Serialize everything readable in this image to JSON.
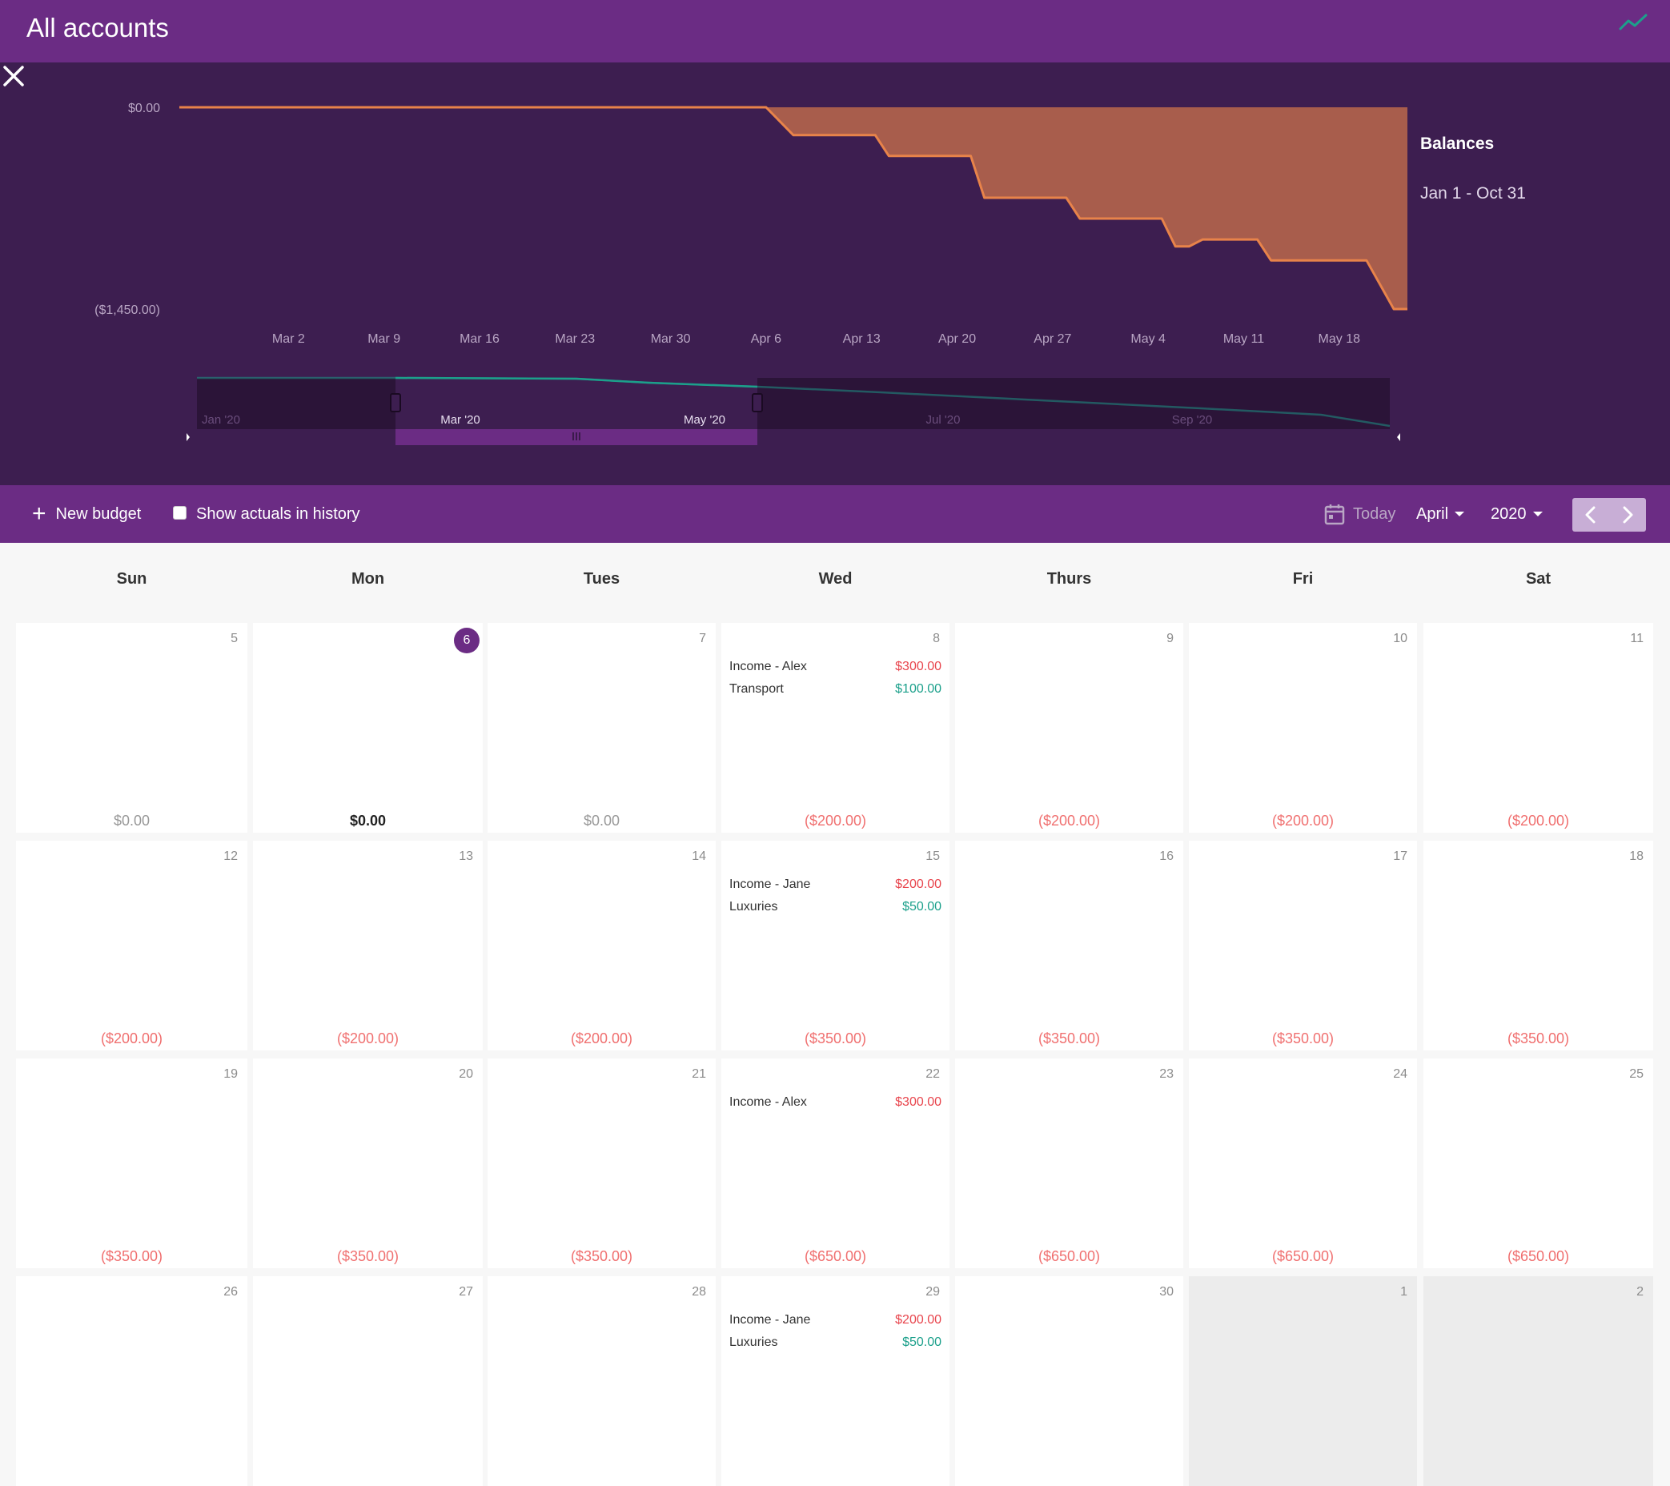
{
  "header": {
    "title": "All accounts",
    "trend_icon": "trend-line-icon"
  },
  "chart_panel": {
    "legend_title": "Balances",
    "legend_range": "Jan 1 - Oct 31",
    "close_icon": "close-icon"
  },
  "chart_data": {
    "type": "area",
    "y_ticks": [
      "$0.00",
      "($1,450.00)"
    ],
    "x_ticks": [
      "Mar 2",
      "Mar 9",
      "Mar 16",
      "Mar 23",
      "Mar 30",
      "Apr 6",
      "Apr 13",
      "Apr 20",
      "Apr 27",
      "May 4",
      "May 11",
      "May 18"
    ],
    "x_start": "2020-02-23",
    "x_end": "2020-05-23",
    "ylim": [
      -1450,
      0
    ],
    "series": [
      {
        "color": "#e8834a",
        "fill": "#a85d4c",
        "points": [
          [
            "2020-02-23",
            0
          ],
          [
            "2020-04-06",
            0
          ],
          [
            "2020-04-08",
            -200
          ],
          [
            "2020-04-14",
            -200
          ],
          [
            "2020-04-15",
            -350
          ],
          [
            "2020-04-21",
            -350
          ],
          [
            "2020-04-22",
            -650
          ],
          [
            "2020-04-28",
            -650
          ],
          [
            "2020-04-29",
            -800
          ],
          [
            "2020-05-05",
            -800
          ],
          [
            "2020-05-06",
            -1000
          ],
          [
            "2020-05-07",
            -1000
          ],
          [
            "2020-05-08",
            -950
          ],
          [
            "2020-05-12",
            -950
          ],
          [
            "2020-05-13",
            -1100
          ],
          [
            "2020-05-20",
            -1100
          ],
          [
            "2020-05-22",
            -1450
          ],
          [
            "2020-05-23",
            -1450
          ]
        ]
      }
    ],
    "navigator": {
      "labels": [
        "Jan '20",
        "Mar '20",
        "May '20",
        "Jul '20",
        "Sep '20"
      ],
      "line_color": "#1ca08b"
    }
  },
  "toolbar": {
    "new_budget": "New budget",
    "show_actuals": "Show actuals in history",
    "today": "Today",
    "month": "April",
    "year": "2020"
  },
  "weekdays": [
    "Sun",
    "Mon",
    "Tues",
    "Wed",
    "Thurs",
    "Fri",
    "Sat"
  ],
  "weeks": [
    [
      {
        "day": "5",
        "balance": "$0.00",
        "kind": "zero"
      },
      {
        "day": "6",
        "balance": "$0.00",
        "kind": "current",
        "today": true
      },
      {
        "day": "7",
        "balance": "$0.00",
        "kind": "zero"
      },
      {
        "day": "8",
        "balance": "($200.00)",
        "kind": "neg",
        "entries": [
          {
            "label": "Income - Alex",
            "amount": "$300.00",
            "sign": "neg"
          },
          {
            "label": "Transport",
            "amount": "$100.00",
            "sign": "pos"
          }
        ]
      },
      {
        "day": "9",
        "balance": "($200.00)",
        "kind": "neg"
      },
      {
        "day": "10",
        "balance": "($200.00)",
        "kind": "neg"
      },
      {
        "day": "11",
        "balance": "($200.00)",
        "kind": "neg"
      }
    ],
    [
      {
        "day": "12",
        "balance": "($200.00)",
        "kind": "neg"
      },
      {
        "day": "13",
        "balance": "($200.00)",
        "kind": "neg"
      },
      {
        "day": "14",
        "balance": "($200.00)",
        "kind": "neg"
      },
      {
        "day": "15",
        "balance": "($350.00)",
        "kind": "neg",
        "entries": [
          {
            "label": "Income - Jane",
            "amount": "$200.00",
            "sign": "neg"
          },
          {
            "label": "Luxuries",
            "amount": "$50.00",
            "sign": "pos"
          }
        ]
      },
      {
        "day": "16",
        "balance": "($350.00)",
        "kind": "neg"
      },
      {
        "day": "17",
        "balance": "($350.00)",
        "kind": "neg"
      },
      {
        "day": "18",
        "balance": "($350.00)",
        "kind": "neg"
      }
    ],
    [
      {
        "day": "19",
        "balance": "($350.00)",
        "kind": "neg"
      },
      {
        "day": "20",
        "balance": "($350.00)",
        "kind": "neg"
      },
      {
        "day": "21",
        "balance": "($350.00)",
        "kind": "neg"
      },
      {
        "day": "22",
        "balance": "($650.00)",
        "kind": "neg",
        "entries": [
          {
            "label": "Income - Alex",
            "amount": "$300.00",
            "sign": "neg"
          }
        ]
      },
      {
        "day": "23",
        "balance": "($650.00)",
        "kind": "neg"
      },
      {
        "day": "24",
        "balance": "($650.00)",
        "kind": "neg"
      },
      {
        "day": "25",
        "balance": "($650.00)",
        "kind": "neg"
      }
    ],
    [
      {
        "day": "26",
        "balance": "",
        "kind": "neg"
      },
      {
        "day": "27",
        "balance": "",
        "kind": "neg"
      },
      {
        "day": "28",
        "balance": "",
        "kind": "neg"
      },
      {
        "day": "29",
        "balance": "",
        "kind": "neg",
        "entries": [
          {
            "label": "Income - Jane",
            "amount": "$200.00",
            "sign": "neg"
          },
          {
            "label": "Luxuries",
            "amount": "$50.00",
            "sign": "pos"
          }
        ]
      },
      {
        "day": "30",
        "balance": "",
        "kind": "neg"
      },
      {
        "day": "1",
        "balance": "",
        "kind": "neg",
        "other": true
      },
      {
        "day": "2",
        "balance": "",
        "kind": "neg",
        "other": true
      }
    ]
  ]
}
